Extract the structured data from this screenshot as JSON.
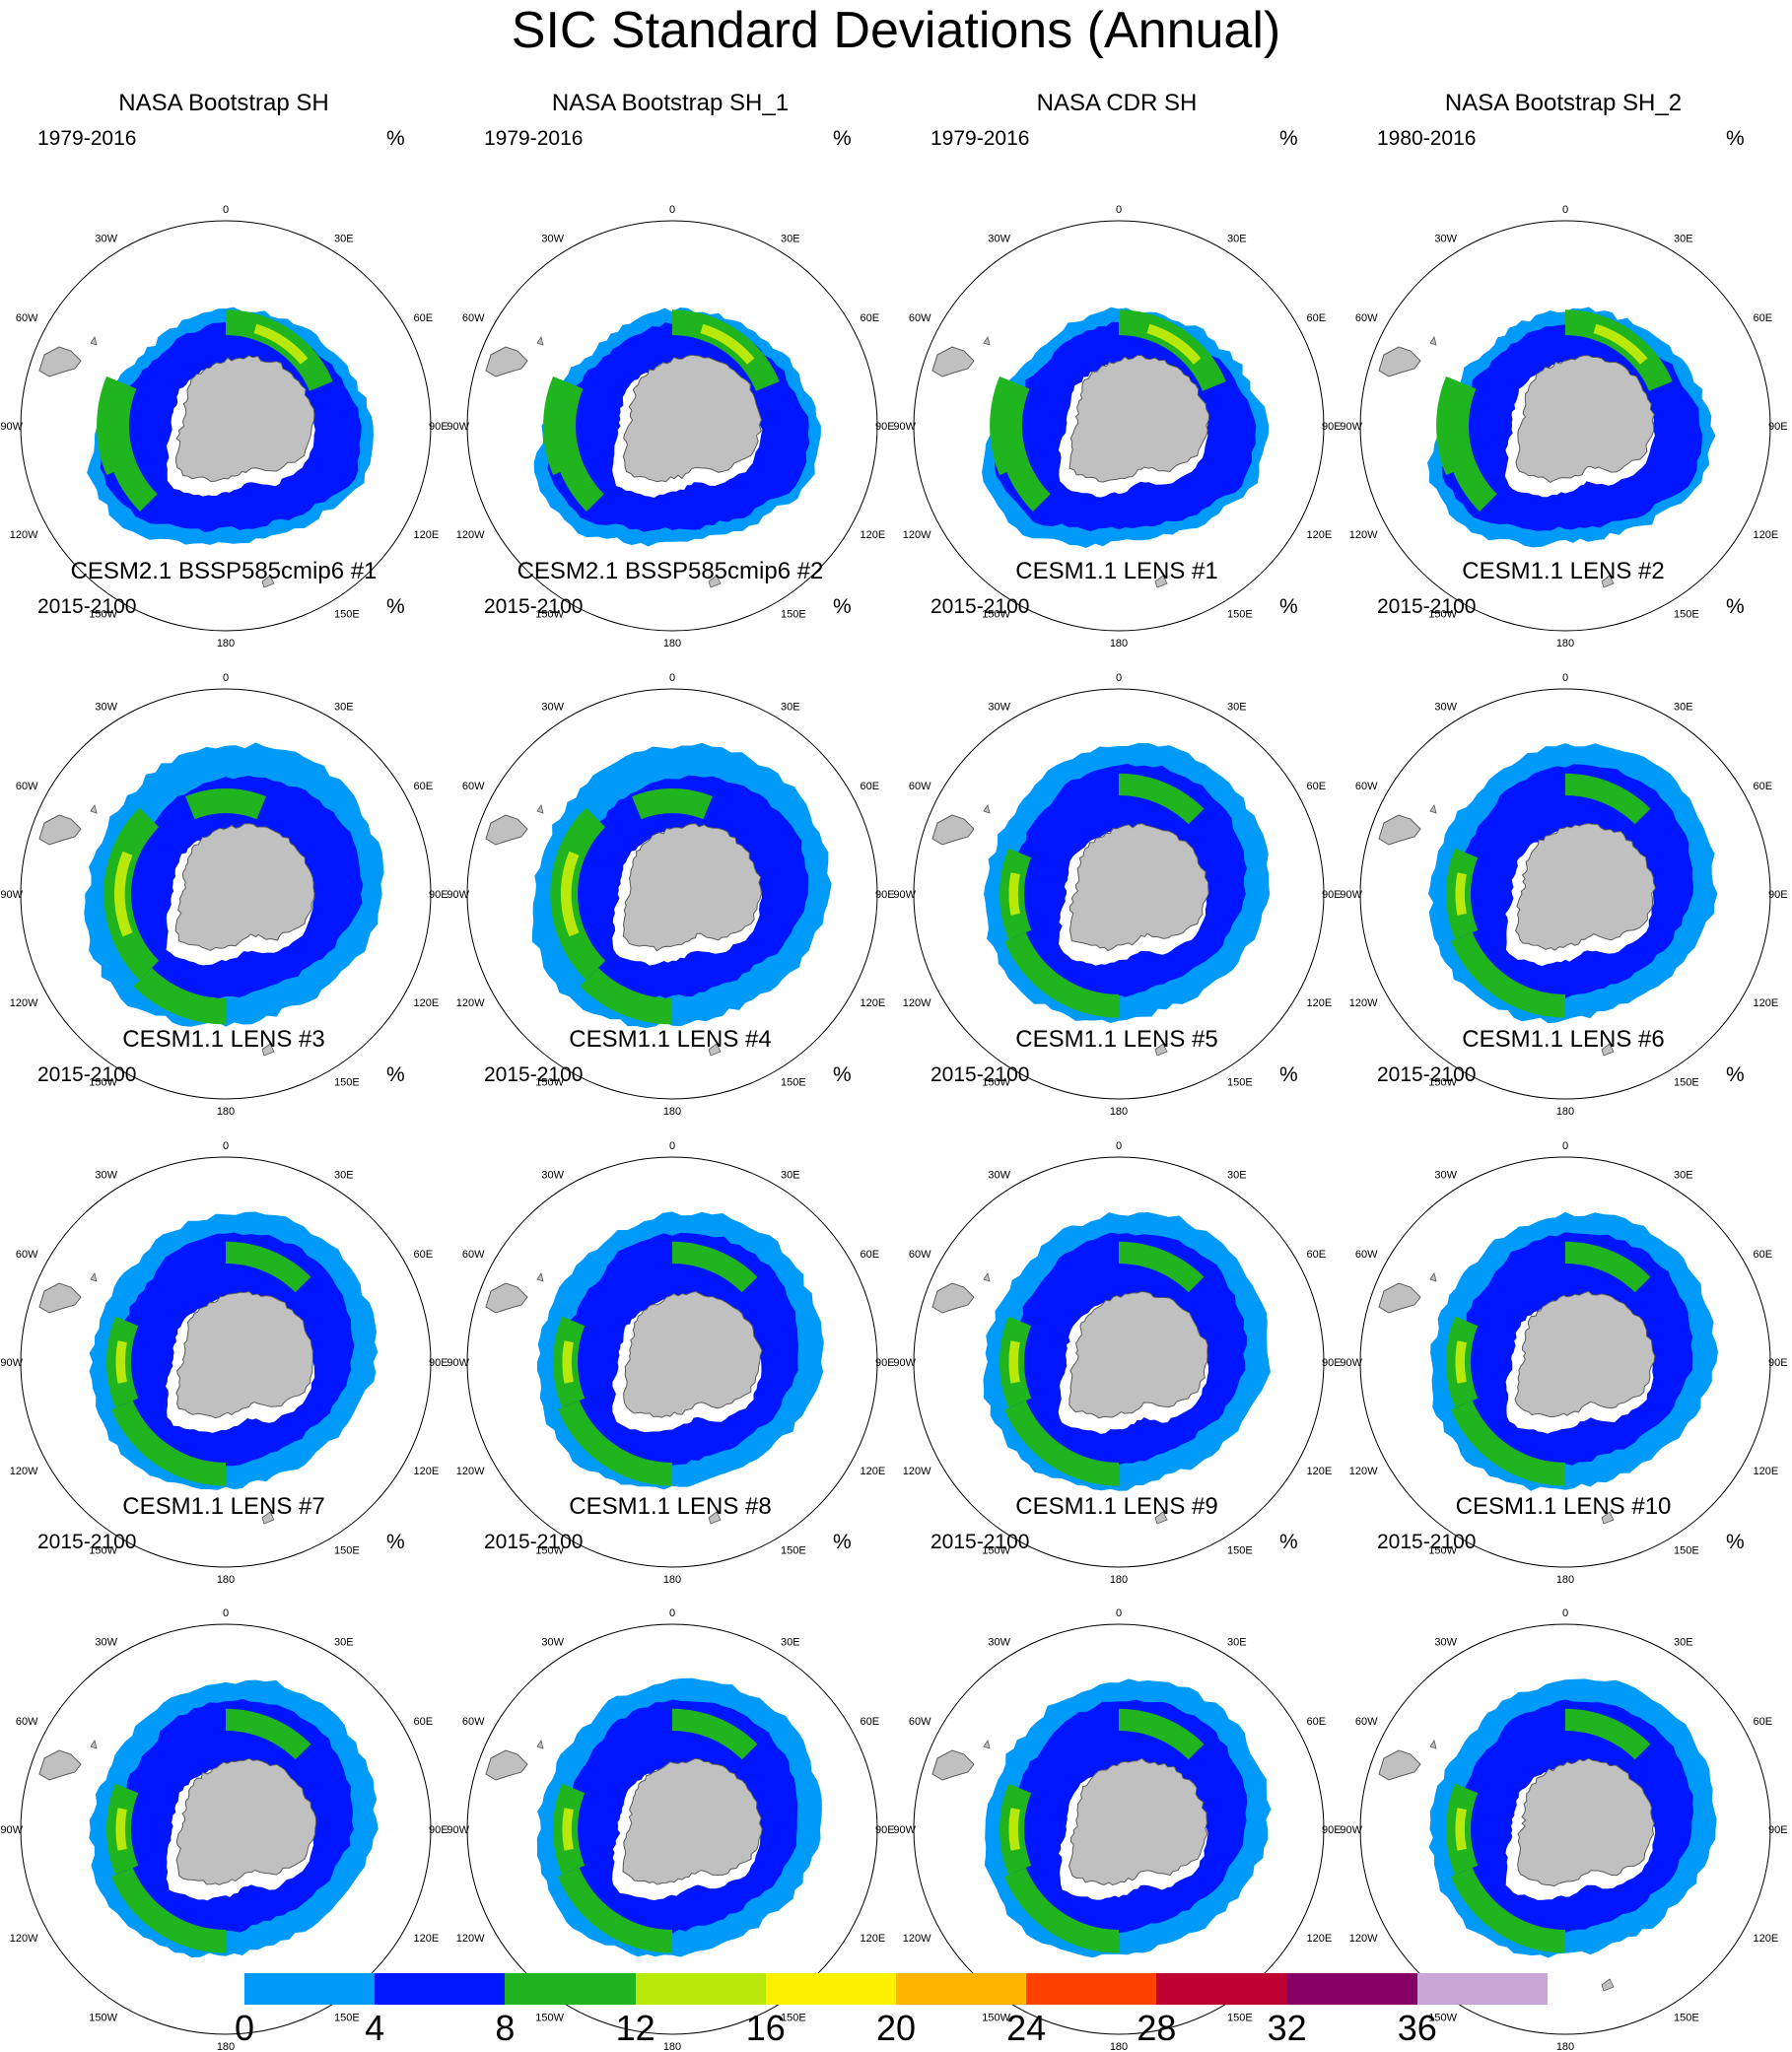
{
  "title": "SIC Standard Deviations (Annual)",
  "units_label": "%",
  "longitude_labels": [
    "0",
    "30E",
    "60E",
    "90E",
    "120E",
    "150E",
    "180",
    "150W",
    "120W",
    "90W",
    "60W",
    "30W"
  ],
  "colorbar": {
    "ticks": [
      "0",
      "4",
      "8",
      "12",
      "16",
      "20",
      "24",
      "28",
      "32",
      "36"
    ],
    "colors": [
      "#009bfa",
      "#0016ff",
      "#20b41e",
      "#b9e90a",
      "#fff000",
      "#ffb400",
      "#ff4100",
      "#be0032",
      "#850065",
      "#c8a6d6"
    ]
  },
  "colors": {
    "land": "#c0c0c0",
    "coastline": "#5a5a5a",
    "frame": "#000000"
  },
  "panels": [
    {
      "title": "NASA Bootstrap SH",
      "years": "1979-2016",
      "pattern": "observed"
    },
    {
      "title": "NASA Bootstrap SH_1",
      "years": "1979-2016",
      "pattern": "observed"
    },
    {
      "title": "NASA CDR SH",
      "years": "1979-2016",
      "pattern": "observed"
    },
    {
      "title": "NASA Bootstrap SH_2",
      "years": "1980-2016",
      "pattern": "observed"
    },
    {
      "title": "CESM2.1 BSSP585cmip6 #1",
      "years": "2015-2100",
      "pattern": "cesm2"
    },
    {
      "title": "CESM2.1 BSSP585cmip6 #2",
      "years": "2015-2100",
      "pattern": "cesm2"
    },
    {
      "title": "CESM1.1 LENS #1",
      "years": "2015-2100",
      "pattern": "lens"
    },
    {
      "title": "CESM1.1 LENS #2",
      "years": "2015-2100",
      "pattern": "lens"
    },
    {
      "title": "CESM1.1 LENS #3",
      "years": "2015-2100",
      "pattern": "lens"
    },
    {
      "title": "CESM1.1 LENS #4",
      "years": "2015-2100",
      "pattern": "lens"
    },
    {
      "title": "CESM1.1 LENS #5",
      "years": "2015-2100",
      "pattern": "lens"
    },
    {
      "title": "CESM1.1 LENS #6",
      "years": "2015-2100",
      "pattern": "lens"
    },
    {
      "title": "CESM1.1 LENS #7",
      "years": "2015-2100",
      "pattern": "lens"
    },
    {
      "title": "CESM1.1 LENS #8",
      "years": "2015-2100",
      "pattern": "lens"
    },
    {
      "title": "CESM1.1 LENS #9",
      "years": "2015-2100",
      "pattern": "lens"
    },
    {
      "title": "CESM1.1 LENS #10",
      "years": "2015-2100",
      "pattern": "lens"
    }
  ]
}
